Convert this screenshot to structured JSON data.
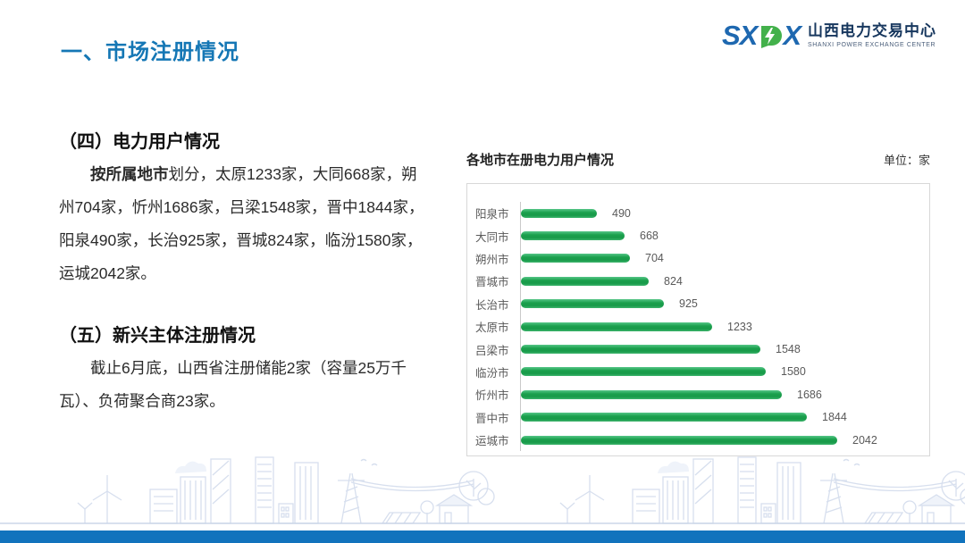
{
  "slide": {
    "title": "一、市场注册情况",
    "logo": {
      "letters_pre": "SX",
      "letter_green": "P",
      "letters_post": "X",
      "name_cn": "山西电力交易中心",
      "name_en": "SHANXI POWER EXCHANGE CENTER"
    },
    "sections": [
      {
        "heading": "（四）电力用户情况",
        "lead_bold": "按所属地市",
        "body": "划分，太原1233家，大同668家，朔州704家，忻州1686家，吕梁1548家，晋中1844家，阳泉490家，长治925家，晋城824家，临汾1580家，运城2042家。"
      },
      {
        "heading": "（五）新兴主体注册情况",
        "lead_bold": "",
        "body": "截止6月底，山西省注册储能2家（容量25万千瓦）、负荷聚合商23家。"
      }
    ],
    "chart_header": {
      "title": "各地市在册电力用户情况",
      "unit": "单位：家"
    }
  },
  "chart_data": {
    "type": "bar",
    "orientation": "horizontal",
    "title": "各地市在册电力用户情况",
    "unit": "家",
    "categories": [
      "阳泉市",
      "大同市",
      "朔州市",
      "晋城市",
      "长治市",
      "太原市",
      "吕梁市",
      "临汾市",
      "忻州市",
      "晋中市",
      "运城市"
    ],
    "values": [
      490,
      668,
      704,
      824,
      925,
      1233,
      1548,
      1580,
      1686,
      1844,
      2042
    ],
    "xlim": [
      0,
      2200
    ],
    "grid": false,
    "legend": false,
    "bar_color": "#1BA04D",
    "value_label_color": "#595959",
    "category_label_color": "#595959"
  },
  "colors": {
    "title_blue": "#1577B5",
    "bottom_bar_blue": "#1173BD",
    "logo_blue": "#1E68B0",
    "logo_green": "#43B14B",
    "chart_border": "#D8D8D8",
    "cityscape_line": "#D7DFEE"
  }
}
